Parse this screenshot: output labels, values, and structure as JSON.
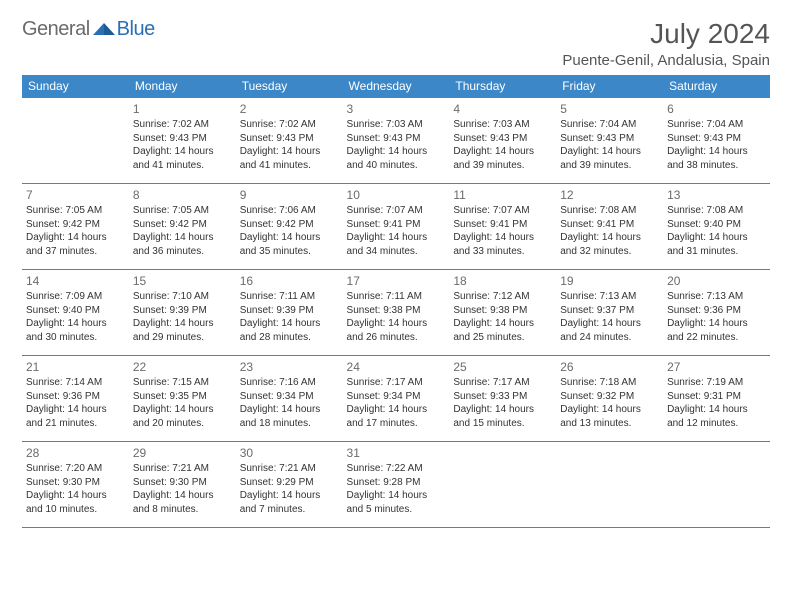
{
  "logo": {
    "text1": "General",
    "text2": "Blue"
  },
  "title": "July 2024",
  "location": "Puente-Genil, Andalusia, Spain",
  "colors": {
    "header_bg": "#3b87c8",
    "header_text": "#ffffff",
    "border": "#3b87c8",
    "daynum": "#6b6b6b",
    "body_text": "#333333",
    "logo_gray": "#6b6b6b",
    "logo_blue": "#2a6fb5"
  },
  "weekdays": [
    "Sunday",
    "Monday",
    "Tuesday",
    "Wednesday",
    "Thursday",
    "Friday",
    "Saturday"
  ],
  "weeks": [
    [
      null,
      {
        "n": "1",
        "sr": "Sunrise: 7:02 AM",
        "ss": "Sunset: 9:43 PM",
        "d1": "Daylight: 14 hours",
        "d2": "and 41 minutes."
      },
      {
        "n": "2",
        "sr": "Sunrise: 7:02 AM",
        "ss": "Sunset: 9:43 PM",
        "d1": "Daylight: 14 hours",
        "d2": "and 41 minutes."
      },
      {
        "n": "3",
        "sr": "Sunrise: 7:03 AM",
        "ss": "Sunset: 9:43 PM",
        "d1": "Daylight: 14 hours",
        "d2": "and 40 minutes."
      },
      {
        "n": "4",
        "sr": "Sunrise: 7:03 AM",
        "ss": "Sunset: 9:43 PM",
        "d1": "Daylight: 14 hours",
        "d2": "and 39 minutes."
      },
      {
        "n": "5",
        "sr": "Sunrise: 7:04 AM",
        "ss": "Sunset: 9:43 PM",
        "d1": "Daylight: 14 hours",
        "d2": "and 39 minutes."
      },
      {
        "n": "6",
        "sr": "Sunrise: 7:04 AM",
        "ss": "Sunset: 9:43 PM",
        "d1": "Daylight: 14 hours",
        "d2": "and 38 minutes."
      }
    ],
    [
      {
        "n": "7",
        "sr": "Sunrise: 7:05 AM",
        "ss": "Sunset: 9:42 PM",
        "d1": "Daylight: 14 hours",
        "d2": "and 37 minutes."
      },
      {
        "n": "8",
        "sr": "Sunrise: 7:05 AM",
        "ss": "Sunset: 9:42 PM",
        "d1": "Daylight: 14 hours",
        "d2": "and 36 minutes."
      },
      {
        "n": "9",
        "sr": "Sunrise: 7:06 AM",
        "ss": "Sunset: 9:42 PM",
        "d1": "Daylight: 14 hours",
        "d2": "and 35 minutes."
      },
      {
        "n": "10",
        "sr": "Sunrise: 7:07 AM",
        "ss": "Sunset: 9:41 PM",
        "d1": "Daylight: 14 hours",
        "d2": "and 34 minutes."
      },
      {
        "n": "11",
        "sr": "Sunrise: 7:07 AM",
        "ss": "Sunset: 9:41 PM",
        "d1": "Daylight: 14 hours",
        "d2": "and 33 minutes."
      },
      {
        "n": "12",
        "sr": "Sunrise: 7:08 AM",
        "ss": "Sunset: 9:41 PM",
        "d1": "Daylight: 14 hours",
        "d2": "and 32 minutes."
      },
      {
        "n": "13",
        "sr": "Sunrise: 7:08 AM",
        "ss": "Sunset: 9:40 PM",
        "d1": "Daylight: 14 hours",
        "d2": "and 31 minutes."
      }
    ],
    [
      {
        "n": "14",
        "sr": "Sunrise: 7:09 AM",
        "ss": "Sunset: 9:40 PM",
        "d1": "Daylight: 14 hours",
        "d2": "and 30 minutes."
      },
      {
        "n": "15",
        "sr": "Sunrise: 7:10 AM",
        "ss": "Sunset: 9:39 PM",
        "d1": "Daylight: 14 hours",
        "d2": "and 29 minutes."
      },
      {
        "n": "16",
        "sr": "Sunrise: 7:11 AM",
        "ss": "Sunset: 9:39 PM",
        "d1": "Daylight: 14 hours",
        "d2": "and 28 minutes."
      },
      {
        "n": "17",
        "sr": "Sunrise: 7:11 AM",
        "ss": "Sunset: 9:38 PM",
        "d1": "Daylight: 14 hours",
        "d2": "and 26 minutes."
      },
      {
        "n": "18",
        "sr": "Sunrise: 7:12 AM",
        "ss": "Sunset: 9:38 PM",
        "d1": "Daylight: 14 hours",
        "d2": "and 25 minutes."
      },
      {
        "n": "19",
        "sr": "Sunrise: 7:13 AM",
        "ss": "Sunset: 9:37 PM",
        "d1": "Daylight: 14 hours",
        "d2": "and 24 minutes."
      },
      {
        "n": "20",
        "sr": "Sunrise: 7:13 AM",
        "ss": "Sunset: 9:36 PM",
        "d1": "Daylight: 14 hours",
        "d2": "and 22 minutes."
      }
    ],
    [
      {
        "n": "21",
        "sr": "Sunrise: 7:14 AM",
        "ss": "Sunset: 9:36 PM",
        "d1": "Daylight: 14 hours",
        "d2": "and 21 minutes."
      },
      {
        "n": "22",
        "sr": "Sunrise: 7:15 AM",
        "ss": "Sunset: 9:35 PM",
        "d1": "Daylight: 14 hours",
        "d2": "and 20 minutes."
      },
      {
        "n": "23",
        "sr": "Sunrise: 7:16 AM",
        "ss": "Sunset: 9:34 PM",
        "d1": "Daylight: 14 hours",
        "d2": "and 18 minutes."
      },
      {
        "n": "24",
        "sr": "Sunrise: 7:17 AM",
        "ss": "Sunset: 9:34 PM",
        "d1": "Daylight: 14 hours",
        "d2": "and 17 minutes."
      },
      {
        "n": "25",
        "sr": "Sunrise: 7:17 AM",
        "ss": "Sunset: 9:33 PM",
        "d1": "Daylight: 14 hours",
        "d2": "and 15 minutes."
      },
      {
        "n": "26",
        "sr": "Sunrise: 7:18 AM",
        "ss": "Sunset: 9:32 PM",
        "d1": "Daylight: 14 hours",
        "d2": "and 13 minutes."
      },
      {
        "n": "27",
        "sr": "Sunrise: 7:19 AM",
        "ss": "Sunset: 9:31 PM",
        "d1": "Daylight: 14 hours",
        "d2": "and 12 minutes."
      }
    ],
    [
      {
        "n": "28",
        "sr": "Sunrise: 7:20 AM",
        "ss": "Sunset: 9:30 PM",
        "d1": "Daylight: 14 hours",
        "d2": "and 10 minutes."
      },
      {
        "n": "29",
        "sr": "Sunrise: 7:21 AM",
        "ss": "Sunset: 9:30 PM",
        "d1": "Daylight: 14 hours",
        "d2": "and 8 minutes."
      },
      {
        "n": "30",
        "sr": "Sunrise: 7:21 AM",
        "ss": "Sunset: 9:29 PM",
        "d1": "Daylight: 14 hours",
        "d2": "and 7 minutes."
      },
      {
        "n": "31",
        "sr": "Sunrise: 7:22 AM",
        "ss": "Sunset: 9:28 PM",
        "d1": "Daylight: 14 hours",
        "d2": "and 5 minutes."
      },
      null,
      null,
      null
    ]
  ]
}
